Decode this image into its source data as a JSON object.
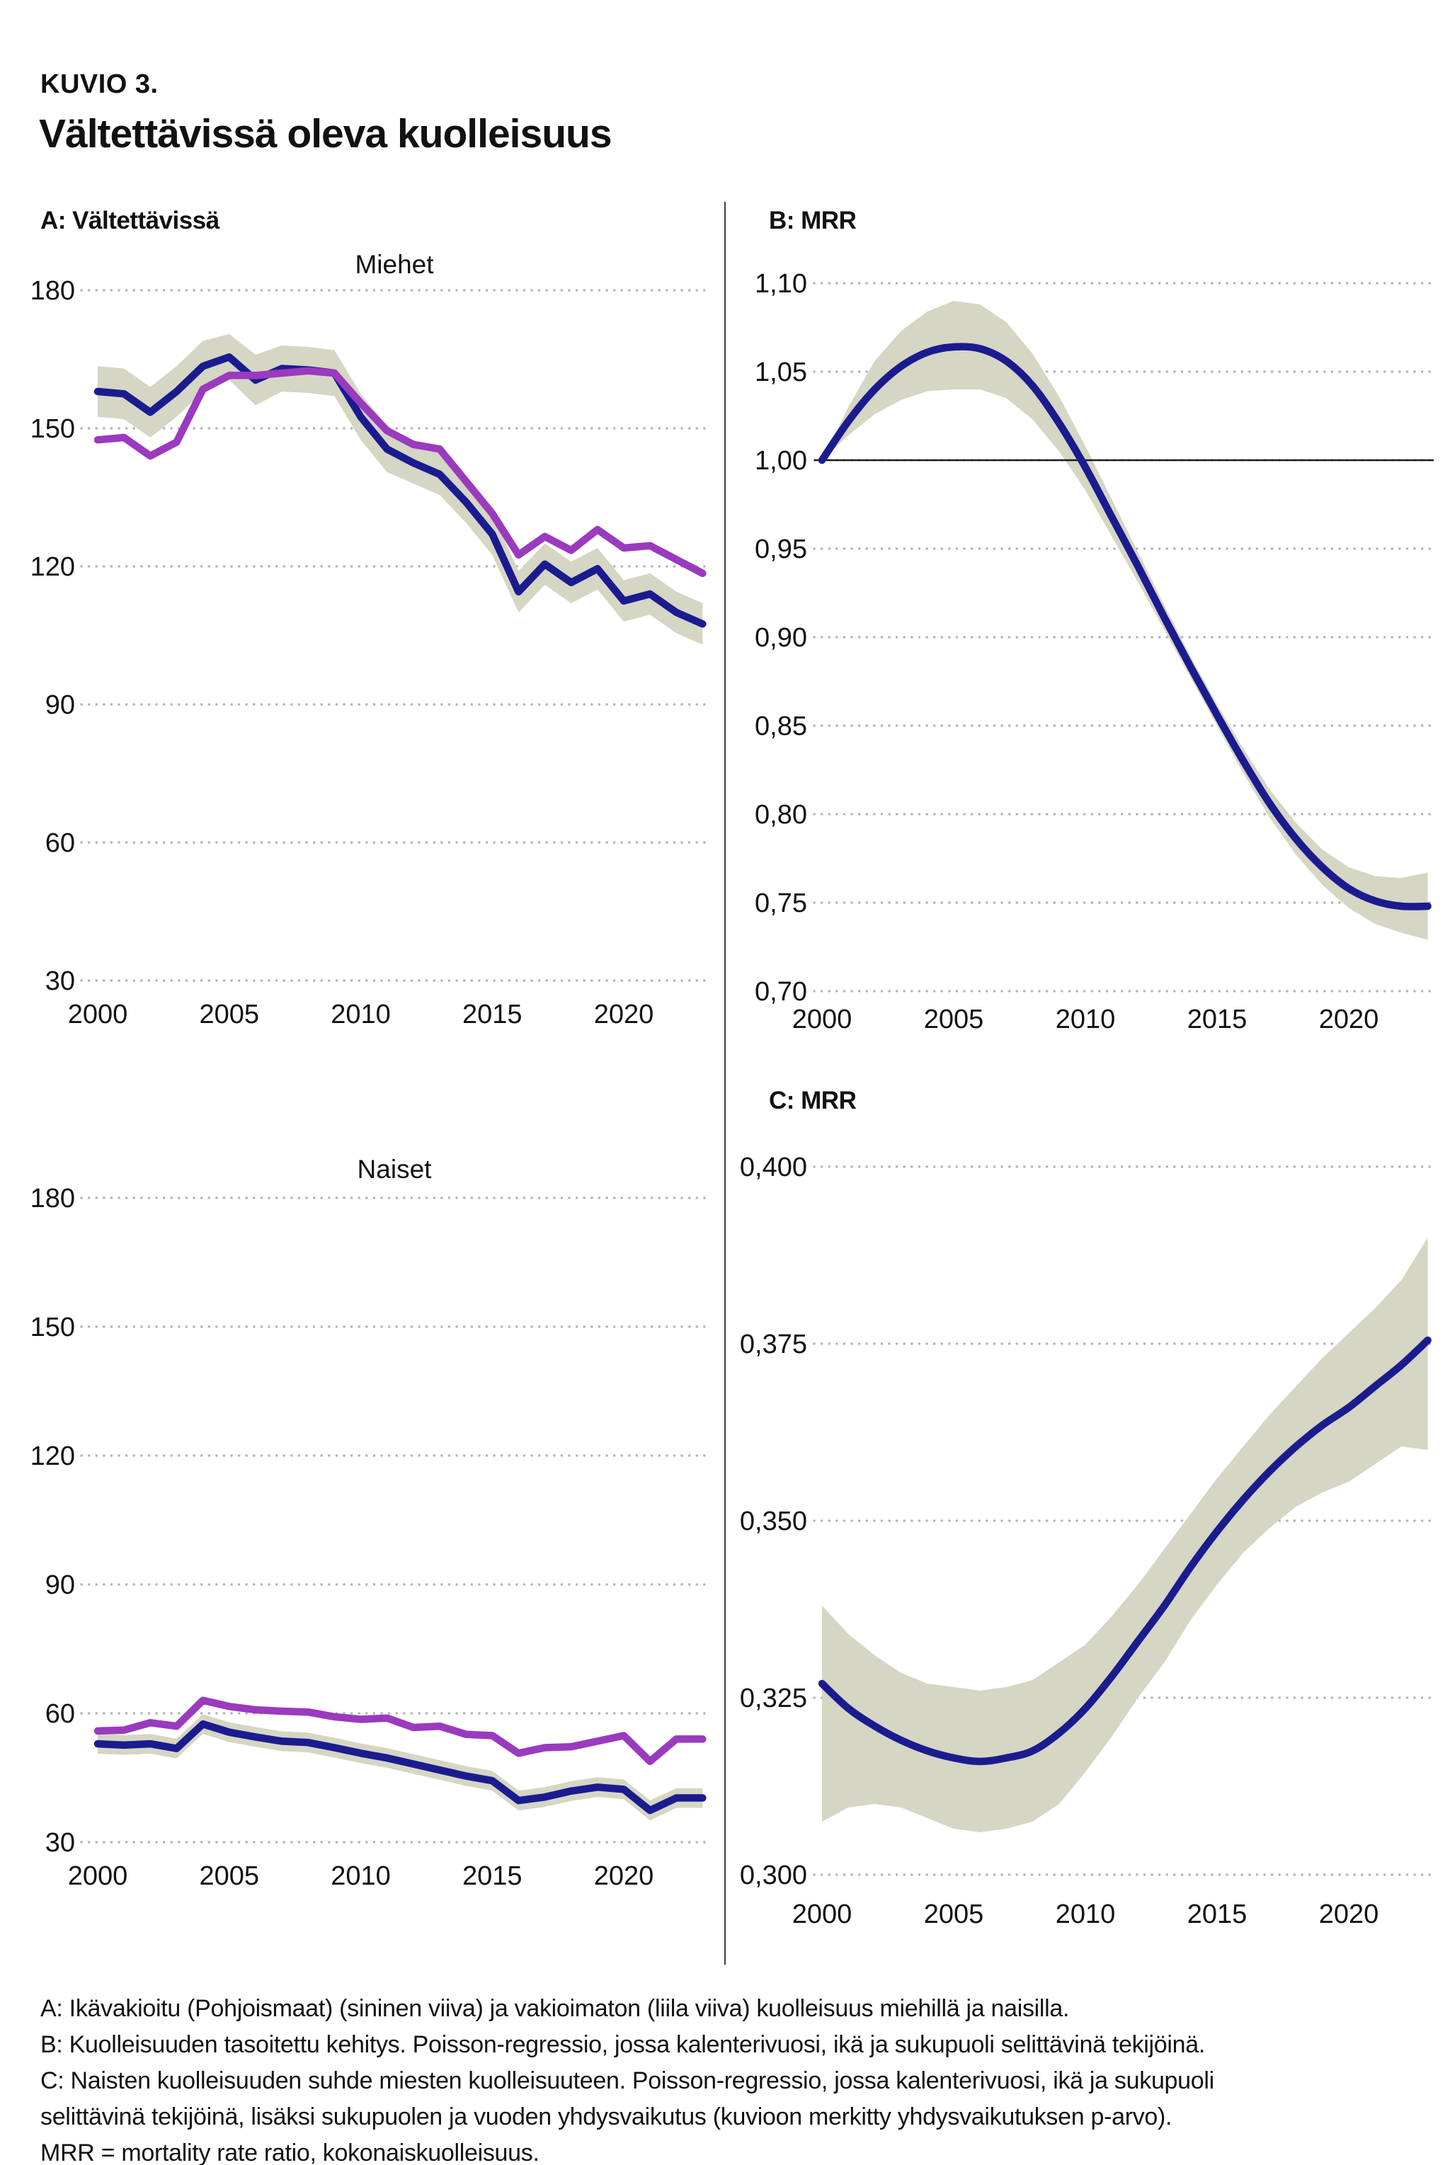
{
  "page": {
    "kicker": "KUVIO 3.",
    "title": "Vältettävissä oleva kuolleisuus",
    "panel_a_label": "A: Vältettävissä",
    "panel_b_label": "B: MRR",
    "panel_c_label": "C: MRR",
    "footnote_lines": [
      "A: Ikävakioitu (Pohjoismaat) (sininen viiva) ja vakioimaton (liila viiva) kuolleisuus miehillä ja naisilla.",
      "B: Kuolleisuuden tasoitettu kehitys. Poisson-regressio, jossa kalenterivuosi, ikä ja sukupuoli selittävinä tekijöinä.",
      "C: Naisten kuolleisuuden suhde miesten kuolleisuuteen. Poisson-regressio, jossa kalenterivuosi, ikä ja sukupuoli",
      "selittävinä tekijöinä, lisäksi sukupuolen ja vuoden yhdysvaikutus (kuvioon merkitty yhdysvaikutuksen p-arvo).",
      "MRR = mortality rate ratio, kokonaiskuolleisuus."
    ]
  },
  "colors": {
    "blue": "#1b1b90",
    "purple": "#9a3abe",
    "band": "#d5d6c3",
    "grid": "#b3b3b3",
    "ref_line": "#1a1a1a",
    "divider": "#3c3c3c",
    "text": "#111111"
  },
  "chart_data": [
    {
      "id": "miehet",
      "type": "line",
      "title": "Miehet",
      "x_start": 2000,
      "x_end": 2023,
      "xticks": [
        2000,
        2005,
        2010,
        2015,
        2020
      ],
      "ylim": [
        30,
        180
      ],
      "yticks": [
        {
          "v": 180,
          "label": "180"
        },
        {
          "v": 150,
          "label": "150"
        },
        {
          "v": 120,
          "label": "120"
        },
        {
          "v": 90,
          "label": "90"
        },
        {
          "v": 60,
          "label": "60"
        },
        {
          "v": 30,
          "label": "30"
        }
      ],
      "series": [
        {
          "name": "Ikävakioitu (Pohjoismaat), sininen viiva",
          "color": "blue",
          "smooth": false,
          "values": [
            158,
            157.5,
            153.5,
            158,
            163.5,
            165.5,
            160.5,
            163,
            162.7,
            162,
            152.5,
            145.5,
            142.5,
            140,
            134,
            127,
            114.5,
            120.5,
            116.5,
            119.5,
            112.5,
            114,
            110,
            107.5
          ],
          "band_upper": [
            163.5,
            163,
            159,
            163.5,
            169,
            170.5,
            166,
            168,
            167.7,
            167,
            157.5,
            150.5,
            147,
            144.5,
            138.5,
            131.5,
            119,
            125,
            121,
            124,
            117,
            118.5,
            114.5,
            112
          ],
          "band_lower": [
            152.5,
            152,
            148,
            152.5,
            158,
            160.5,
            155,
            158,
            157.7,
            157,
            147.5,
            140.5,
            138,
            135.5,
            129.5,
            122.5,
            110,
            116,
            112,
            115,
            108,
            109.5,
            105.5,
            103
          ]
        },
        {
          "name": "Vakioimaton, liila viiva",
          "color": "purple",
          "smooth": false,
          "values": [
            147.5,
            148,
            144,
            147,
            158.5,
            161.5,
            161.5,
            162,
            162.5,
            162,
            155.5,
            149.5,
            146.5,
            145.5,
            138.5,
            131.5,
            122.5,
            126.5,
            123.5,
            128,
            124,
            124.5,
            121.5,
            118.5
          ]
        }
      ]
    },
    {
      "id": "naiset",
      "type": "line",
      "title": "Naiset",
      "x_start": 2000,
      "x_end": 2023,
      "xticks": [
        2000,
        2005,
        2010,
        2015,
        2020
      ],
      "ylim": [
        30,
        180
      ],
      "yticks": [
        {
          "v": 180,
          "label": "180"
        },
        {
          "v": 150,
          "label": "150"
        },
        {
          "v": 120,
          "label": "120"
        },
        {
          "v": 90,
          "label": "90"
        },
        {
          "v": 60,
          "label": "60"
        },
        {
          "v": 30,
          "label": "30"
        }
      ],
      "series": [
        {
          "name": "Ikävakioitu (Pohjoismaat), sininen viiva",
          "color": "blue",
          "smooth": false,
          "values": [
            52.9,
            52.6,
            52.9,
            51.8,
            57.5,
            55.6,
            54.5,
            53.5,
            53.2,
            52,
            50.7,
            49.6,
            48.2,
            46.8,
            45.4,
            44.3,
            39.7,
            40.5,
            41.9,
            42.8,
            42.3,
            37.4,
            40.3,
            40.3
          ],
          "band_upper": [
            55.2,
            54.9,
            55.2,
            54.1,
            59.8,
            57.9,
            56.8,
            55.8,
            55.5,
            54.3,
            53,
            51.9,
            50.5,
            49.1,
            47.7,
            46.6,
            42,
            42.8,
            44.2,
            45.1,
            44.6,
            39.7,
            42.6,
            42.6
          ],
          "band_lower": [
            50.6,
            50.3,
            50.6,
            49.5,
            55.2,
            53.3,
            52.2,
            51.2,
            50.9,
            49.7,
            48.4,
            47.3,
            45.9,
            44.5,
            43.1,
            42,
            37.4,
            38.2,
            39.6,
            40.5,
            40,
            35.1,
            38,
            38
          ]
        },
        {
          "name": "Vakioimaton, liila viiva",
          "color": "purple",
          "smooth": false,
          "values": [
            55.9,
            56.1,
            57.8,
            57,
            63,
            61.6,
            60.8,
            60.5,
            60.3,
            59.2,
            58.6,
            58.9,
            56.7,
            57,
            55.1,
            54.8,
            50.7,
            52,
            52.2,
            53.5,
            54.8,
            48.8,
            54,
            54
          ]
        }
      ]
    },
    {
      "id": "b-mrr",
      "type": "line",
      "title": "",
      "x_start": 2000,
      "x_end": 2023,
      "xticks": [
        2000,
        2005,
        2010,
        2015,
        2020
      ],
      "ylim": [
        0.7,
        1.1
      ],
      "ref_line": 1.0,
      "yticks": [
        {
          "v": 1.1,
          "label": "1,10"
        },
        {
          "v": 1.05,
          "label": "1,05"
        },
        {
          "v": 1.0,
          "label": "1,00"
        },
        {
          "v": 0.95,
          "label": "0,95"
        },
        {
          "v": 0.9,
          "label": "0,90"
        },
        {
          "v": 0.85,
          "label": "0,85"
        },
        {
          "v": 0.8,
          "label": "0,80"
        },
        {
          "v": 0.75,
          "label": "0,75"
        },
        {
          "v": 0.7,
          "label": "0,70"
        }
      ],
      "series": [
        {
          "name": "MRR, kuolleisuuden tasoitettu kehitys",
          "color": "blue",
          "smooth": true,
          "values": [
            1.0,
            1.022,
            1.04,
            1.053,
            1.061,
            1.064,
            1.063,
            1.056,
            1.042,
            1.021,
            0.996,
            0.968,
            0.94,
            0.911,
            0.883,
            0.856,
            0.83,
            0.806,
            0.786,
            0.77,
            0.758,
            0.751,
            0.748,
            0.748
          ],
          "band_upper": [
            1.0,
            1.03,
            1.056,
            1.073,
            1.084,
            1.09,
            1.088,
            1.078,
            1.06,
            1.036,
            1.008,
            0.978,
            0.948,
            0.918,
            0.889,
            0.862,
            0.837,
            0.814,
            0.795,
            0.78,
            0.77,
            0.765,
            0.764,
            0.767
          ],
          "band_lower": [
            1.0,
            1.014,
            1.026,
            1.034,
            1.039,
            1.04,
            1.04,
            1.035,
            1.023,
            1.005,
            0.983,
            0.957,
            0.931,
            0.904,
            0.877,
            0.85,
            0.823,
            0.798,
            0.777,
            0.76,
            0.747,
            0.738,
            0.733,
            0.729
          ]
        }
      ]
    },
    {
      "id": "c-mrr",
      "type": "line",
      "title": "",
      "x_start": 2000,
      "x_end": 2023,
      "xticks": [
        2000,
        2005,
        2010,
        2015,
        2020
      ],
      "ylim": [
        0.3,
        0.4
      ],
      "yticks": [
        {
          "v": 0.4,
          "label": "0,400"
        },
        {
          "v": 0.375,
          "label": "0,375"
        },
        {
          "v": 0.35,
          "label": "0,350"
        },
        {
          "v": 0.325,
          "label": "0,325"
        },
        {
          "v": 0.3,
          "label": "0,300"
        }
      ],
      "series": [
        {
          "name": "MRR, naisten kuolleisuuden suhde miesten kuolleisuuteen",
          "color": "blue",
          "smooth": true,
          "values": [
            0.327,
            0.3235,
            0.321,
            0.319,
            0.3175,
            0.3165,
            0.316,
            0.3165,
            0.3175,
            0.32,
            0.3235,
            0.328,
            0.333,
            0.338,
            0.3435,
            0.3485,
            0.353,
            0.357,
            0.3605,
            0.3635,
            0.366,
            0.369,
            0.372,
            0.3755
          ],
          "band_upper": [
            0.338,
            0.334,
            0.331,
            0.3285,
            0.327,
            0.3265,
            0.326,
            0.3265,
            0.3275,
            0.33,
            0.3325,
            0.3365,
            0.341,
            0.346,
            0.351,
            0.356,
            0.3605,
            0.365,
            0.369,
            0.373,
            0.3765,
            0.38,
            0.384,
            0.39
          ],
          "band_lower": [
            0.3075,
            0.3095,
            0.31,
            0.3095,
            0.308,
            0.3065,
            0.306,
            0.3065,
            0.3075,
            0.31,
            0.3145,
            0.3195,
            0.325,
            0.33,
            0.336,
            0.341,
            0.3455,
            0.349,
            0.352,
            0.354,
            0.3555,
            0.358,
            0.3605,
            0.36
          ]
        }
      ]
    }
  ]
}
